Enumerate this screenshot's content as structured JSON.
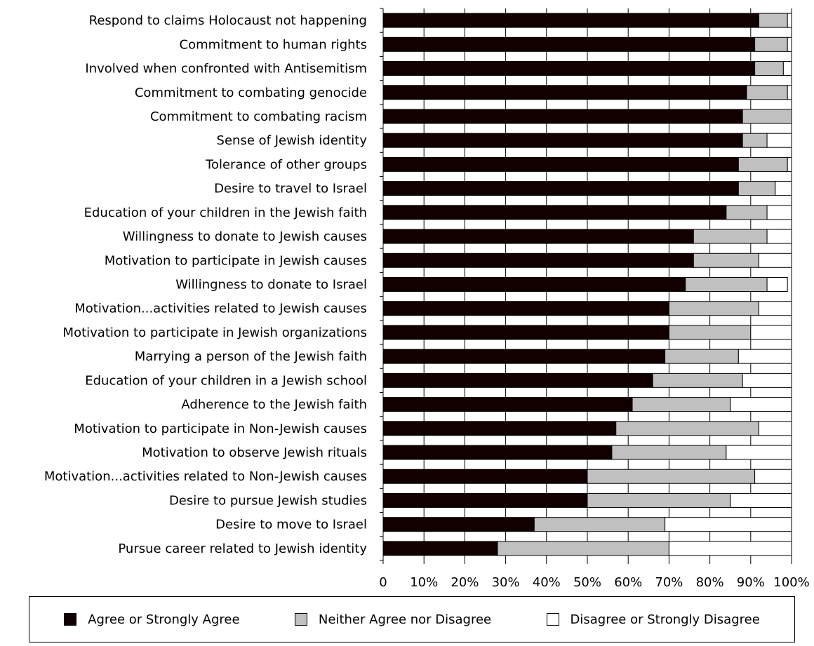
{
  "chart_data": {
    "type": "bar",
    "orientation": "horizontal",
    "stacked": true,
    "categories": [
      "Respond to claims Holocaust not happening",
      "Commitment to human rights",
      "Involved when confronted with Antisemitism",
      "Commitment to combating genocide",
      "Commitment to combating racism",
      "Sense of Jewish identity",
      "Tolerance of other groups",
      "Desire to travel to Israel",
      "Education of your children in the Jewish faith",
      "Willingness to donate to Jewish causes",
      "Motivation to participate in Jewish causes",
      "Willingness to donate to Israel",
      "Motivation...activities related to Jewish causes",
      "Motivation to participate in Jewish organizations",
      "Marrying a person of the Jewish faith",
      "Education of your children in a Jewish school",
      "Adherence to the Jewish faith",
      "Motivation to participate in Non-Jewish causes",
      "Motivation to observe Jewish rituals",
      "Motivation...activities related to Non-Jewish causes",
      "Desire to pursue Jewish studies",
      "Desire to move to Israel",
      "Pursue career related to Jewish identity"
    ],
    "series": [
      {
        "name": "Agree or Strongly Agree",
        "color": "#120000",
        "values": [
          92,
          91,
          91,
          89,
          88,
          88,
          87,
          87,
          84,
          76,
          76,
          74,
          70,
          70,
          69,
          66,
          61,
          57,
          56,
          50,
          50,
          37,
          28
        ]
      },
      {
        "name": "Neither Agree nor Disagree",
        "color": "#c0c0c0",
        "values": [
          7,
          8,
          7,
          10,
          12,
          6,
          12,
          9,
          10,
          18,
          16,
          20,
          22,
          20,
          18,
          22,
          24,
          35,
          28,
          41,
          35,
          32,
          42
        ]
      },
      {
        "name": "Disagree or Strongly Disagree",
        "color": "#ffffff",
        "values": [
          1,
          1,
          2,
          1,
          0,
          6,
          1,
          4,
          6,
          6,
          8,
          5,
          8,
          10,
          13,
          12,
          15,
          8,
          16,
          9,
          15,
          31,
          30
        ]
      }
    ],
    "x_ticks": [
      "0",
      "10%",
      "20%",
      "30%",
      "40%",
      "50%",
      "60%",
      "70%",
      "80%",
      "90%",
      "100%"
    ],
    "xlim": [
      0,
      100
    ],
    "grid": true,
    "legend_position": "bottom"
  }
}
